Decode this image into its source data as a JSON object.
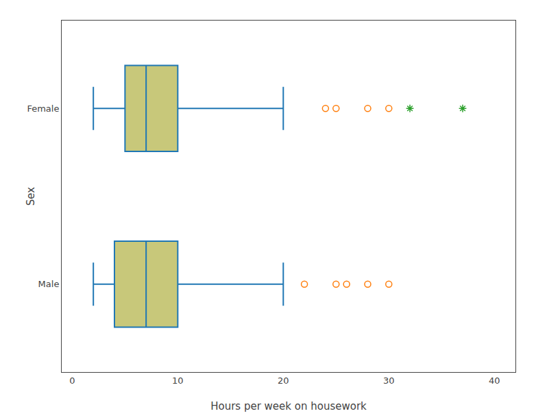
{
  "chart_data": {
    "type": "box",
    "orientation": "horizontal",
    "xlabel": "Hours per week on housework",
    "ylabel": "Sex",
    "categories": [
      "Male",
      "Female"
    ],
    "q1": [
      4.0,
      5.0
    ],
    "median": [
      7.0,
      7.0
    ],
    "q3": [
      10.0,
      10.0
    ],
    "whisker_low": [
      2.0,
      2.0
    ],
    "whisker_high": [
      20.0,
      20.0
    ],
    "outliers": [
      [
        22.0,
        25.0,
        26.0,
        28.0,
        30.0
      ],
      [
        24.0,
        25.0,
        28.0,
        30.0
      ]
    ],
    "extreme_outliers": [
      [],
      [
        32.0,
        37.0
      ]
    ],
    "color": "#c8c87a",
    "xlim": [
      -1,
      42
    ],
    "xticks": [
      0,
      10,
      20,
      30,
      40
    ],
    "grid": false
  }
}
